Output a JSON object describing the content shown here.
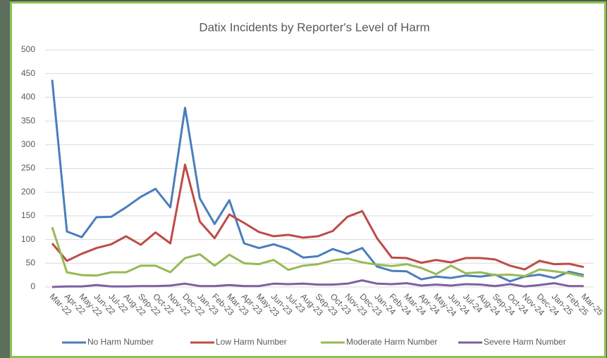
{
  "chart_data": {
    "type": "line",
    "title": "Datix Incidents by Reporter's Level of Harm",
    "categories": [
      "Mar-22",
      "Apr-22",
      "May-22",
      "Jun-22",
      "Jul-22",
      "Aug-22",
      "Sep-22",
      "Oct-22",
      "Nov-22",
      "Dec-22",
      "Jan-23",
      "Feb-23",
      "Mar-23",
      "Apr-23",
      "May-23",
      "Jun-23",
      "Jul-23",
      "Aug-23",
      "Sep-23",
      "Oct-23",
      "Nov-23",
      "Dec-23",
      "Jan-24",
      "Feb-24",
      "Mar-24",
      "Apr-24",
      "May-24",
      "Jun-24",
      "Jul-24",
      "Aug-24",
      "Sep-24",
      "Oct-24",
      "Nov-24",
      "Dec-24",
      "Jan-25",
      "Feb-25",
      "Mar-25"
    ],
    "series": [
      {
        "name": "No Harm Number",
        "color": "#4a7ebb",
        "values": [
          437,
          117,
          105,
          147,
          148,
          168,
          190,
          207,
          168,
          378,
          187,
          133,
          183,
          92,
          82,
          90,
          80,
          62,
          65,
          80,
          70,
          82,
          43,
          34,
          33,
          16,
          22,
          19,
          24,
          22,
          26,
          12,
          22,
          26,
          19,
          32,
          25
        ]
      },
      {
        "name": "Low Harm Number",
        "color": "#be4b48",
        "values": [
          92,
          55,
          70,
          82,
          90,
          107,
          89,
          115,
          92,
          258,
          138,
          103,
          153,
          135,
          116,
          107,
          110,
          104,
          107,
          118,
          148,
          160,
          103,
          62,
          61,
          51,
          57,
          52,
          61,
          61,
          58,
          45,
          37,
          55,
          48,
          49,
          42
        ]
      },
      {
        "name": "Moderate Harm Number",
        "color": "#98b954",
        "values": [
          126,
          31,
          25,
          24,
          31,
          31,
          45,
          45,
          31,
          61,
          69,
          45,
          68,
          50,
          48,
          57,
          36,
          45,
          48,
          56,
          60,
          52,
          47,
          44,
          48,
          40,
          27,
          45,
          29,
          31,
          25,
          26,
          23,
          37,
          33,
          29,
          22
        ]
      },
      {
        "name": "Severe Harm Number",
        "color": "#7d60a0",
        "values": [
          0,
          1,
          1,
          4,
          1,
          1,
          2,
          2,
          3,
          7,
          2,
          2,
          4,
          2,
          2,
          7,
          6,
          7,
          5,
          5,
          7,
          14,
          7,
          6,
          8,
          3,
          5,
          3,
          6,
          5,
          2,
          6,
          1,
          4,
          8,
          2,
          2
        ]
      }
    ],
    "ylim": [
      0,
      500
    ],
    "yticks": [
      0,
      50,
      100,
      150,
      200,
      250,
      300,
      350,
      400,
      450,
      500
    ],
    "grid": true,
    "legend": "bottom"
  }
}
